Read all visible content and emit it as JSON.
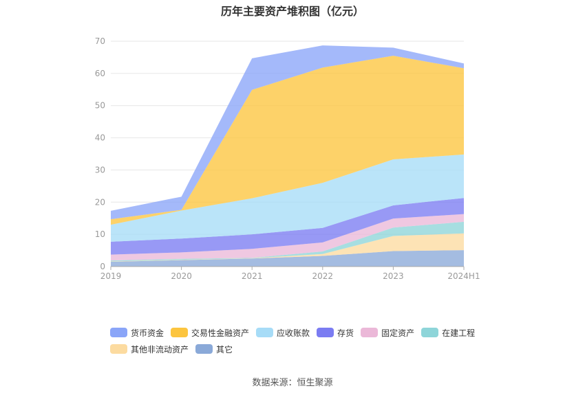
{
  "chart_data": {
    "type": "area",
    "stacked": true,
    "title": "历年主要资产堆积图（亿元）",
    "categories": [
      "2019",
      "2020",
      "2021",
      "2022",
      "2023",
      "2024H1"
    ],
    "y_ticks": [
      "0",
      "10",
      "20",
      "30",
      "40",
      "50",
      "60",
      "70"
    ],
    "ylim": [
      0,
      70
    ],
    "series": [
      {
        "name": "其它",
        "color": "#8aa9d8",
        "values": [
          1.5,
          2.0,
          2.5,
          3.3,
          4.8,
          5.1
        ]
      },
      {
        "name": "其他非流动资产",
        "color": "#fcdba0",
        "values": [
          0.1,
          0.1,
          0.1,
          0.6,
          4.7,
          5.2
        ]
      },
      {
        "name": "在建工程",
        "color": "#8ed5d9",
        "values": [
          0.3,
          0.3,
          0.1,
          0.8,
          2.6,
          3.6
        ]
      },
      {
        "name": "固定资产",
        "color": "#ebb8d8",
        "values": [
          1.8,
          2.0,
          2.8,
          2.8,
          2.8,
          2.4
        ]
      },
      {
        "name": "存货",
        "color": "#7b7cf2",
        "values": [
          4.0,
          4.3,
          4.5,
          4.5,
          4.1,
          5.0
        ]
      },
      {
        "name": "应收账款",
        "color": "#a7dcf7",
        "values": [
          5.3,
          8.7,
          11.2,
          14.0,
          14.3,
          13.5
        ]
      },
      {
        "name": "交易性金融资产",
        "color": "#fcc53f",
        "values": [
          1.7,
          0.2,
          33.7,
          35.8,
          32.2,
          26.8
        ]
      },
      {
        "name": "货币资金",
        "color": "#8aa5f8",
        "values": [
          2.6,
          4.1,
          9.8,
          6.9,
          2.5,
          1.5
        ]
      }
    ],
    "legend_order": [
      "货币资金",
      "交易性金融资产",
      "应收账款",
      "存货",
      "固定资产",
      "在建工程",
      "其他非流动资产",
      "其它"
    ],
    "legend_position": "bottom"
  },
  "footer": {
    "source": "数据来源：恒生聚源"
  }
}
